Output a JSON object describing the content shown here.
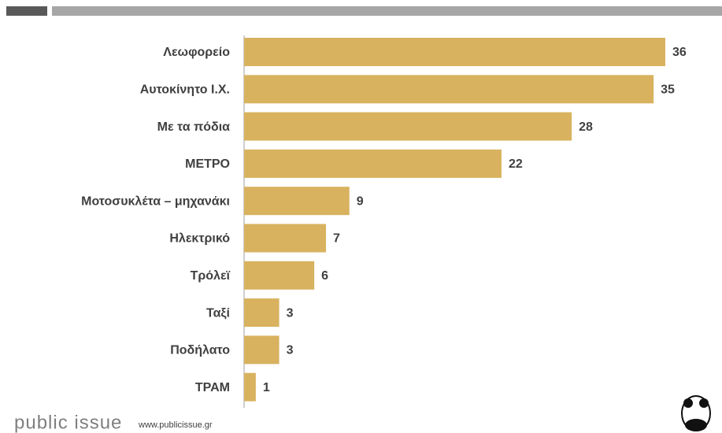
{
  "chart_data": {
    "type": "bar",
    "orientation": "horizontal",
    "categories": [
      "Λεωφορείο",
      "Αυτοκίνητο Ι.Χ.",
      "Με τα πόδια",
      "ΜΕΤΡΟ",
      "Μοτοσυκλέτα – μηχανάκι",
      "Ηλεκτρικό",
      "Τρόλεϊ",
      "Ταξί",
      "Ποδήλατο",
      "ΤΡΑΜ"
    ],
    "values": [
      36,
      35,
      28,
      22,
      9,
      7,
      6,
      3,
      3,
      1
    ],
    "color": "#d8b25f"
  },
  "footer": {
    "brand": "public issue",
    "url": "www.publicissue.gr"
  }
}
